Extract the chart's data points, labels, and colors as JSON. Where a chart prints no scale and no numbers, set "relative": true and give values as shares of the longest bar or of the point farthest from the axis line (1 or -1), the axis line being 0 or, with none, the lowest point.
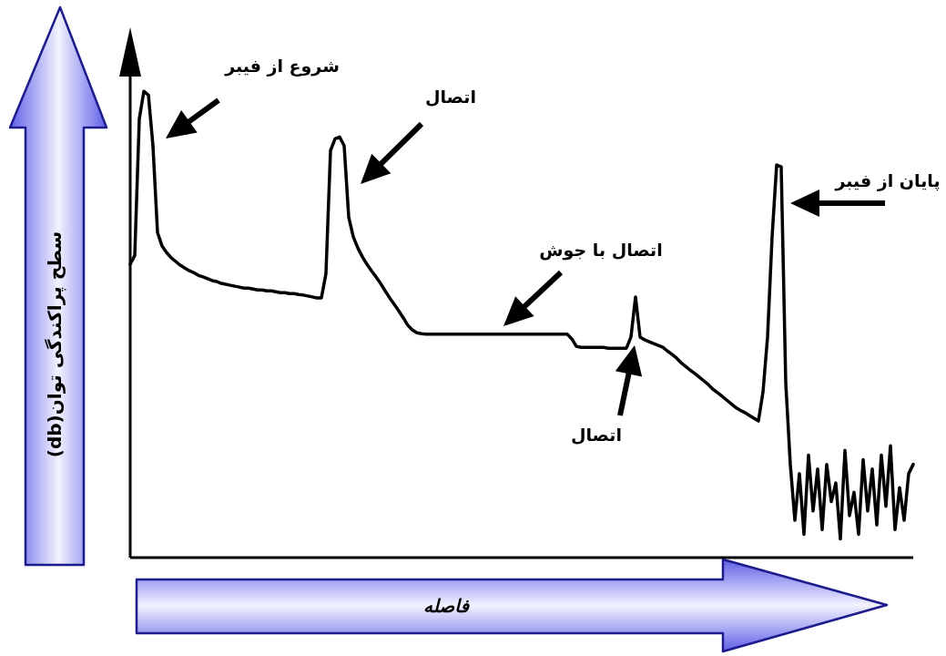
{
  "chart_data": {
    "type": "line",
    "relative": true,
    "color": "#000000",
    "xlabel": "فاصله",
    "ylabel": "سطح پراکندگی توان(db)",
    "annotations": [
      "شروع از فیبر",
      "اتصال",
      "اتصال با جوش",
      "اتصال",
      "پایان از فیبر"
    ],
    "categories": [
      null,
      null,
      null,
      null,
      null,
      null,
      null,
      null,
      null,
      null,
      null,
      null,
      null,
      null,
      null,
      null,
      null,
      null,
      null,
      null,
      null,
      null,
      null,
      null,
      null,
      null,
      null,
      null,
      null,
      null,
      null,
      null,
      null,
      null,
      null,
      null,
      null,
      null,
      null,
      null,
      null,
      null,
      null,
      null,
      null,
      null,
      null,
      null,
      null,
      null,
      null,
      null,
      null,
      null,
      null,
      null,
      null,
      null,
      null,
      null,
      null,
      null,
      null,
      null,
      null,
      null,
      null,
      null,
      null,
      null,
      null,
      null,
      null,
      null,
      null,
      null,
      null,
      null,
      null,
      null,
      null,
      null,
      null,
      null,
      null,
      null,
      null,
      null,
      null,
      null,
      null,
      null,
      null,
      null,
      null,
      null,
      null,
      null,
      null,
      null,
      null,
      null,
      null,
      null,
      null,
      null,
      null,
      null,
      null,
      null,
      null,
      null,
      null,
      null,
      null,
      null,
      null,
      null,
      null,
      null,
      null,
      null,
      null,
      null,
      null,
      null,
      null,
      null,
      null,
      null,
      null,
      null,
      null,
      null,
      null,
      null,
      null,
      null,
      null,
      null,
      null,
      null,
      null,
      null,
      null,
      null,
      null,
      null,
      null,
      null,
      null,
      null,
      null,
      null,
      null,
      null,
      null,
      null,
      null,
      null,
      null,
      null,
      null,
      null,
      null,
      null,
      null,
      null,
      null,
      null,
      null,
      null,
      null
    ],
    "values": [
      0.629,
      0.648,
      0.941,
      1,
      0.992,
      0.883,
      0.697,
      0.668,
      0.654,
      0.643,
      0.635,
      0.627,
      0.621,
      0.615,
      0.611,
      0.605,
      0.602,
      0.598,
      0.594,
      0.592,
      0.588,
      0.586,
      0.584,
      0.582,
      0.58,
      0.578,
      0.578,
      0.576,
      0.574,
      0.574,
      0.572,
      0.572,
      0.57,
      0.568,
      0.568,
      0.566,
      0.566,
      0.564,
      0.563,
      0.561,
      0.559,
      0.557,
      0.557,
      0.609,
      0.873,
      0.898,
      0.902,
      0.883,
      0.73,
      0.688,
      0.664,
      0.645,
      0.629,
      0.615,
      0.602,
      0.588,
      0.572,
      0.557,
      0.543,
      0.529,
      0.514,
      0.498,
      0.488,
      0.482,
      0.48,
      0.479,
      0.479,
      0.479,
      0.479,
      0.479,
      0.479,
      0.479,
      0.479,
      0.479,
      0.479,
      0.479,
      0.479,
      0.479,
      0.479,
      0.479,
      0.479,
      0.479,
      0.479,
      0.479,
      0.479,
      0.479,
      0.479,
      0.479,
      0.479,
      0.479,
      0.479,
      0.479,
      0.479,
      0.479,
      0.479,
      0.479,
      0.479,
      0.469,
      0.453,
      0.451,
      0.451,
      0.451,
      0.451,
      0.451,
      0.451,
      0.449,
      0.449,
      0.449,
      0.449,
      0.449,
      0.473,
      0.559,
      0.473,
      0.467,
      0.463,
      0.459,
      0.455,
      0.451,
      0.443,
      0.436,
      0.428,
      0.418,
      0.41,
      0.402,
      0.395,
      0.387,
      0.379,
      0.371,
      0.361,
      0.354,
      0.346,
      0.338,
      0.33,
      0.322,
      0.316,
      0.311,
      0.305,
      0.299,
      0.293,
      0.355,
      0.473,
      0.688,
      0.842,
      0.838,
      0.375,
      0.2,
      0.08,
      0.18,
      0.05,
      0.22,
      0.1,
      0.19,
      0.06,
      0.2,
      0.12,
      0.16,
      0.04,
      0.23,
      0.09,
      0.14,
      0.05,
      0.21,
      0.1,
      0.19,
      0.07,
      0.22,
      0.11,
      0.24,
      0.06,
      0.15,
      0.08,
      0.18,
      0.2
    ]
  }
}
